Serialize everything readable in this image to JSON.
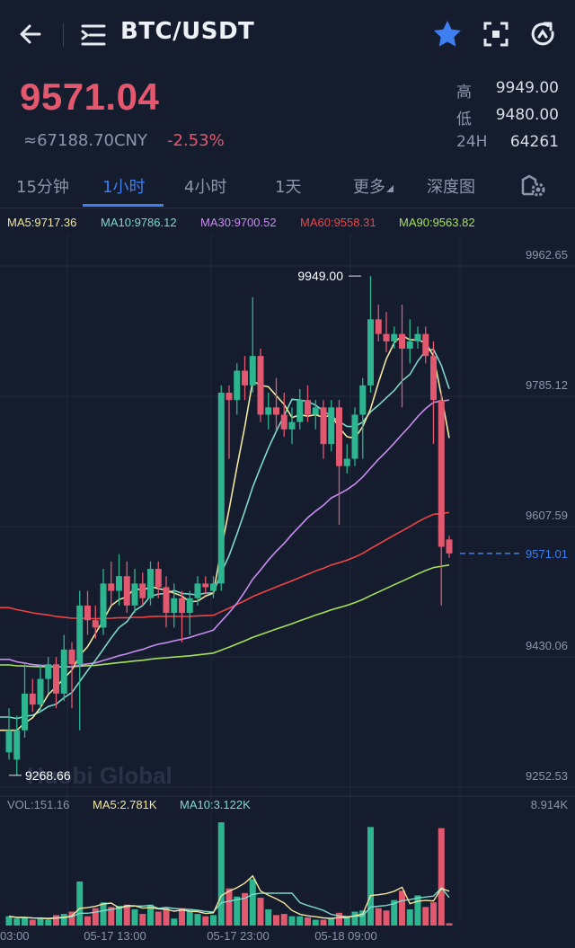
{
  "header": {
    "pair": "BTC/USDT",
    "icons": [
      "back-arrow-icon",
      "menu-icon",
      "star-icon",
      "scan-icon",
      "refresh-icon"
    ]
  },
  "ticker": {
    "price": "9571.04",
    "cny": "≈67188.70CNY",
    "change": "-2.53%",
    "high_label": "高",
    "high_value": "9949.00",
    "low_label": "低",
    "low_value": "9480.00",
    "vol_label": "24H",
    "vol_value": "64261"
  },
  "tabs": [
    {
      "label": "15分钟",
      "active": false
    },
    {
      "label": "1小时",
      "active": true
    },
    {
      "label": "4小时",
      "active": false
    },
    {
      "label": "1天",
      "active": false
    },
    {
      "label": "更多",
      "active": false
    },
    {
      "label": "深度图",
      "active": false
    }
  ],
  "colors": {
    "up": "#2db58f",
    "down": "#e2596f",
    "ma5": "#f2e6a0",
    "ma10": "#7fd9c9",
    "ma30": "#c98cf0",
    "ma60": "#ef4444",
    "ma90": "#a6e05a",
    "accent": "#3d7ef0"
  },
  "ma_legend": [
    {
      "label": "MA5:9717.36",
      "color": "#f2e6a0"
    },
    {
      "label": "MA10:9786.12",
      "color": "#7fd9c9"
    },
    {
      "label": "MA30:9700.52",
      "color": "#c98cf0"
    },
    {
      "label": "MA60:9558.31",
      "color": "#ef4444"
    },
    {
      "label": "MA90:9563.82",
      "color": "#a6e05a"
    }
  ],
  "vol_legend": [
    {
      "label": "VOL:151.16",
      "color": "#8c95aa"
    },
    {
      "label": "MA5:2.781K",
      "color": "#f2e6a0"
    },
    {
      "label": "MA10:3.122K",
      "color": "#7fd9c9"
    }
  ],
  "chart_data": {
    "type": "candlestick",
    "price_axis": [
      "9962.65",
      "9785.12",
      "9607.59",
      "9430.06",
      "9252.53"
    ],
    "price_range": [
      9252.53,
      9962.65
    ],
    "current_price": "9571.01",
    "max_label": "9949.00",
    "min_label": "9268.66",
    "vol_max": "8.914K",
    "time_labels": [
      "03:00",
      "05-17 13:00",
      "05-17 23:00",
      "05-18 09:00"
    ],
    "watermark": "Huobi Global",
    "candles": [
      {
        "o": 9300,
        "c": 9330,
        "h": 9360,
        "l": 9290,
        "v": 0.8
      },
      {
        "o": 9290,
        "c": 9330,
        "h": 9350,
        "l": 9269,
        "v": 0.6
      },
      {
        "o": 9330,
        "c": 9380,
        "h": 9420,
        "l": 9320,
        "v": 0.7
      },
      {
        "o": 9380,
        "c": 9365,
        "h": 9400,
        "l": 9355,
        "v": 0.5
      },
      {
        "o": 9365,
        "c": 9400,
        "h": 9420,
        "l": 9355,
        "v": 0.6
      },
      {
        "o": 9400,
        "c": 9420,
        "h": 9430,
        "l": 9380,
        "v": 0.5
      },
      {
        "o": 9420,
        "c": 9380,
        "h": 9430,
        "l": 9360,
        "v": 0.9
      },
      {
        "o": 9380,
        "c": 9440,
        "h": 9460,
        "l": 9370,
        "v": 1.0
      },
      {
        "o": 9440,
        "c": 9420,
        "h": 9450,
        "l": 9360,
        "v": 1.2
      },
      {
        "o": 9420,
        "c": 9500,
        "h": 9520,
        "l": 9330,
        "v": 3.8
      },
      {
        "o": 9500,
        "c": 9480,
        "h": 9520,
        "l": 9460,
        "v": 0.8
      },
      {
        "o": 9480,
        "c": 9470,
        "h": 9500,
        "l": 9455,
        "v": 1.5
      },
      {
        "o": 9470,
        "c": 9530,
        "h": 9550,
        "l": 9460,
        "v": 2.0
      },
      {
        "o": 9530,
        "c": 9520,
        "h": 9560,
        "l": 9500,
        "v": 1.6
      },
      {
        "o": 9520,
        "c": 9540,
        "h": 9570,
        "l": 9500,
        "v": 1.7
      },
      {
        "o": 9540,
        "c": 9500,
        "h": 9560,
        "l": 9490,
        "v": 1.8
      },
      {
        "o": 9500,
        "c": 9530,
        "h": 9550,
        "l": 9490,
        "v": 1.4
      },
      {
        "o": 9530,
        "c": 9510,
        "h": 9545,
        "l": 9500,
        "v": 1.0
      },
      {
        "o": 9510,
        "c": 9550,
        "h": 9560,
        "l": 9500,
        "v": 1.8
      },
      {
        "o": 9550,
        "c": 9525,
        "h": 9560,
        "l": 9510,
        "v": 1.2
      },
      {
        "o": 9525,
        "c": 9490,
        "h": 9540,
        "l": 9470,
        "v": 1.6
      },
      {
        "o": 9490,
        "c": 9510,
        "h": 9530,
        "l": 9470,
        "v": 0.6
      },
      {
        "o": 9510,
        "c": 9490,
        "h": 9520,
        "l": 9450,
        "v": 1.5
      },
      {
        "o": 9490,
        "c": 9510,
        "h": 9520,
        "l": 9460,
        "v": 1.3
      },
      {
        "o": 9510,
        "c": 9530,
        "h": 9540,
        "l": 9500,
        "v": 1.0
      },
      {
        "o": 9530,
        "c": 9525,
        "h": 9540,
        "l": 9515,
        "v": 0.8
      },
      {
        "o": 9520,
        "c": 9530,
        "h": 9540,
        "l": 9510,
        "v": 0.9
      },
      {
        "o": 9530,
        "c": 9790,
        "h": 9800,
        "l": 9520,
        "v": 8.9
      },
      {
        "o": 9790,
        "c": 9780,
        "h": 9800,
        "l": 9700,
        "v": 3.2
      },
      {
        "o": 9780,
        "c": 9820,
        "h": 9830,
        "l": 9760,
        "v": 2.5
      },
      {
        "o": 9820,
        "c": 9800,
        "h": 9840,
        "l": 9780,
        "v": 2.8
      },
      {
        "o": 9800,
        "c": 9840,
        "h": 9920,
        "l": 9790,
        "v": 4.0
      },
      {
        "o": 9840,
        "c": 9760,
        "h": 9850,
        "l": 9750,
        "v": 2.4
      },
      {
        "o": 9760,
        "c": 9770,
        "h": 9790,
        "l": 9740,
        "v": 1.4
      },
      {
        "o": 9770,
        "c": 9760,
        "h": 9810,
        "l": 9740,
        "v": 0.9
      },
      {
        "o": 9760,
        "c": 9740,
        "h": 9790,
        "l": 9730,
        "v": 1.0
      },
      {
        "o": 9740,
        "c": 9750,
        "h": 9770,
        "l": 9720,
        "v": 0.8
      },
      {
        "o": 9750,
        "c": 9780,
        "h": 9795,
        "l": 9740,
        "v": 0.8
      },
      {
        "o": 9780,
        "c": 9760,
        "h": 9800,
        "l": 9750,
        "v": 0.7
      },
      {
        "o": 9760,
        "c": 9770,
        "h": 9780,
        "l": 9740,
        "v": 0.5
      },
      {
        "o": 9770,
        "c": 9720,
        "h": 9780,
        "l": 9700,
        "v": 0.5
      },
      {
        "o": 9720,
        "c": 9770,
        "h": 9780,
        "l": 9710,
        "v": 0.6
      },
      {
        "o": 9770,
        "c": 9690,
        "h": 9780,
        "l": 9610,
        "v": 1.1
      },
      {
        "o": 9690,
        "c": 9700,
        "h": 9720,
        "l": 9680,
        "v": 0.8
      },
      {
        "o": 9700,
        "c": 9760,
        "h": 9770,
        "l": 9690,
        "v": 1.2
      },
      {
        "o": 9760,
        "c": 9800,
        "h": 9810,
        "l": 9700,
        "v": 1.3
      },
      {
        "o": 9800,
        "c": 9890,
        "h": 9949,
        "l": 9790,
        "v": 8.5
      },
      {
        "o": 9890,
        "c": 9870,
        "h": 9910,
        "l": 9860,
        "v": 1.5
      },
      {
        "o": 9870,
        "c": 9860,
        "h": 9900,
        "l": 9845,
        "v": 1.3
      },
      {
        "o": 9860,
        "c": 9870,
        "h": 9880,
        "l": 9850,
        "v": 2.2
      },
      {
        "o": 9870,
        "c": 9850,
        "h": 9910,
        "l": 9770,
        "v": 3.0
      },
      {
        "o": 9850,
        "c": 9860,
        "h": 9890,
        "l": 9830,
        "v": 1.4
      },
      {
        "o": 9860,
        "c": 9870,
        "h": 9880,
        "l": 9850,
        "v": 2.6
      },
      {
        "o": 9870,
        "c": 9840,
        "h": 9880,
        "l": 9830,
        "v": 1.6
      },
      {
        "o": 9840,
        "c": 9780,
        "h": 9860,
        "l": 9720,
        "v": 2.0
      },
      {
        "o": 9780,
        "c": 9580,
        "h": 9790,
        "l": 9500,
        "v": 8.4
      },
      {
        "o": 9590,
        "c": 9571,
        "h": 9595,
        "l": 9565,
        "v": 0.2
      }
    ]
  }
}
